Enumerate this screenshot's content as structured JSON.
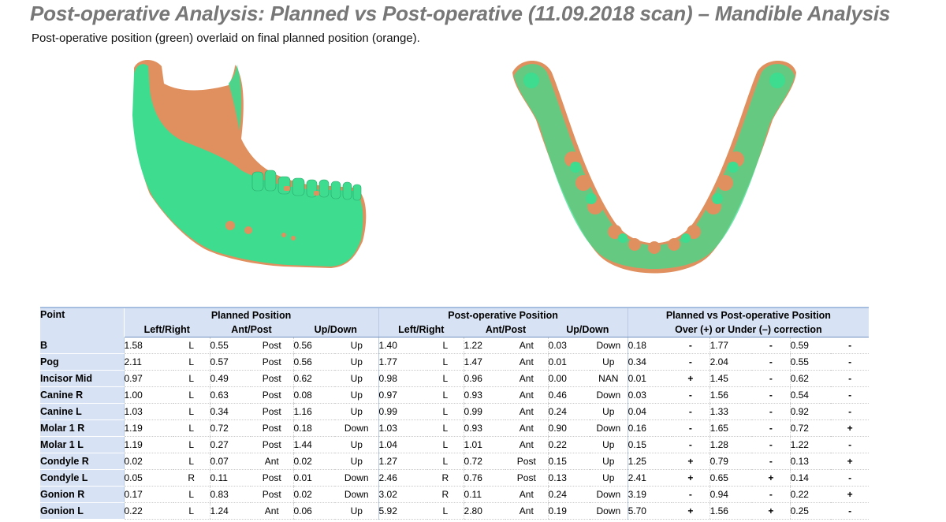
{
  "title": "Post-operative Analysis: Planned vs Post-operative (11.09.2018 scan) – Mandible Analysis",
  "subtitle": "Post-operative position (green) overlaid on final planned position (orange).",
  "colors": {
    "post_operative": "#3ddc8f",
    "planned": "#e0905e"
  },
  "table": {
    "point_header": "Point",
    "groups": {
      "planned": "Planned Position",
      "post": "Post-operative Position",
      "diff_line1": "Planned vs Post-operative Position",
      "diff_line2": "Over (+) or Under (–) correction"
    },
    "sub_headers": [
      "Left/Right",
      "Ant/Post",
      "Up/Down",
      "Left/Right",
      "Ant/Post",
      "Up/Down"
    ],
    "rows": [
      {
        "point": "B",
        "plr": "1.58",
        "plr_d": "L",
        "pap": "0.55",
        "pap_d": "Post",
        "pud": "0.56",
        "pud_d": "Up",
        "olr": "1.40",
        "olr_d": "L",
        "oap": "1.22",
        "oap_d": "Ant",
        "oud": "0.03",
        "oud_d": "Down",
        "dlr": "0.18",
        "dlr_s": "-",
        "dap": "1.77",
        "dap_s": "-",
        "dud": "0.59",
        "dud_s": "-"
      },
      {
        "point": "Pog",
        "plr": "2.11",
        "plr_d": "L",
        "pap": "0.57",
        "pap_d": "Post",
        "pud": "0.56",
        "pud_d": "Up",
        "olr": "1.77",
        "olr_d": "L",
        "oap": "1.47",
        "oap_d": "Ant",
        "oud": "0.01",
        "oud_d": "Up",
        "dlr": "0.34",
        "dlr_s": "-",
        "dap": "2.04",
        "dap_s": "-",
        "dud": "0.55",
        "dud_s": "-"
      },
      {
        "point": "Incisor Mid",
        "plr": "0.97",
        "plr_d": "L",
        "pap": "0.49",
        "pap_d": "Post",
        "pud": "0.62",
        "pud_d": "Up",
        "olr": "0.98",
        "olr_d": "L",
        "oap": "0.96",
        "oap_d": "Ant",
        "oud": "0.00",
        "oud_d": "NAN",
        "dlr": "0.01",
        "dlr_s": "+",
        "dap": "1.45",
        "dap_s": "-",
        "dud": "0.62",
        "dud_s": "-"
      },
      {
        "point": "Canine R",
        "plr": "1.00",
        "plr_d": "L",
        "pap": "0.63",
        "pap_d": "Post",
        "pud": "0.08",
        "pud_d": "Up",
        "olr": "0.97",
        "olr_d": "L",
        "oap": "0.93",
        "oap_d": "Ant",
        "oud": "0.46",
        "oud_d": "Down",
        "dlr": "0.03",
        "dlr_s": "-",
        "dap": "1.56",
        "dap_s": "-",
        "dud": "0.54",
        "dud_s": "-"
      },
      {
        "point": "Canine L",
        "plr": "1.03",
        "plr_d": "L",
        "pap": "0.34",
        "pap_d": "Post",
        "pud": "1.16",
        "pud_d": "Up",
        "olr": "0.99",
        "olr_d": "L",
        "oap": "0.99",
        "oap_d": "Ant",
        "oud": "0.24",
        "oud_d": "Up",
        "dlr": "0.04",
        "dlr_s": "-",
        "dap": "1.33",
        "dap_s": "-",
        "dud": "0.92",
        "dud_s": "-"
      },
      {
        "point": "Molar 1 R",
        "plr": "1.19",
        "plr_d": "L",
        "pap": "0.72",
        "pap_d": "Post",
        "pud": "0.18",
        "pud_d": "Down",
        "olr": "1.03",
        "olr_d": "L",
        "oap": "0.93",
        "oap_d": "Ant",
        "oud": "0.90",
        "oud_d": "Down",
        "dlr": "0.16",
        "dlr_s": "-",
        "dap": "1.65",
        "dap_s": "-",
        "dud": "0.72",
        "dud_s": "+"
      },
      {
        "point": "Molar 1 L",
        "plr": "1.19",
        "plr_d": "L",
        "pap": "0.27",
        "pap_d": "Post",
        "pud": "1.44",
        "pud_d": "Up",
        "olr": "1.04",
        "olr_d": "L",
        "oap": "1.01",
        "oap_d": "Ant",
        "oud": "0.22",
        "oud_d": "Up",
        "dlr": "0.15",
        "dlr_s": "-",
        "dap": "1.28",
        "dap_s": "-",
        "dud": "1.22",
        "dud_s": "-"
      },
      {
        "point": "Condyle R",
        "plr": "0.02",
        "plr_d": "L",
        "pap": "0.07",
        "pap_d": "Ant",
        "pud": "0.02",
        "pud_d": "Up",
        "olr": "1.27",
        "olr_d": "L",
        "oap": "0.72",
        "oap_d": "Post",
        "oud": "0.15",
        "oud_d": "Up",
        "dlr": "1.25",
        "dlr_s": "+",
        "dap": "0.79",
        "dap_s": "-",
        "dud": "0.13",
        "dud_s": "+"
      },
      {
        "point": "Condyle L",
        "plr": "0.05",
        "plr_d": "R",
        "pap": "0.11",
        "pap_d": "Post",
        "pud": "0.01",
        "pud_d": "Down",
        "olr": "2.46",
        "olr_d": "R",
        "oap": "0.76",
        "oap_d": "Post",
        "oud": "0.13",
        "oud_d": "Up",
        "dlr": "2.41",
        "dlr_s": "+",
        "dap": "0.65",
        "dap_s": "+",
        "dud": "0.14",
        "dud_s": "-"
      },
      {
        "point": "Gonion R",
        "plr": "0.17",
        "plr_d": "L",
        "pap": "0.83",
        "pap_d": "Post",
        "pud": "0.02",
        "pud_d": "Down",
        "olr": "3.02",
        "olr_d": "R",
        "oap": "0.11",
        "oap_d": "Ant",
        "oud": "0.24",
        "oud_d": "Down",
        "dlr": "3.19",
        "dlr_s": "-",
        "dap": "0.94",
        "dap_s": "-",
        "dud": "0.22",
        "dud_s": "+"
      },
      {
        "point": "Gonion L",
        "plr": "0.22",
        "plr_d": "L",
        "pap": "1.24",
        "pap_d": "Ant",
        "pud": "0.06",
        "pud_d": "Up",
        "olr": "5.92",
        "olr_d": "L",
        "oap": "2.80",
        "oap_d": "Ant",
        "oud": "0.19",
        "oud_d": "Down",
        "dlr": "5.70",
        "dlr_s": "+",
        "dap": "1.56",
        "dap_s": "+",
        "dud": "0.25",
        "dud_s": "-"
      }
    ]
  }
}
